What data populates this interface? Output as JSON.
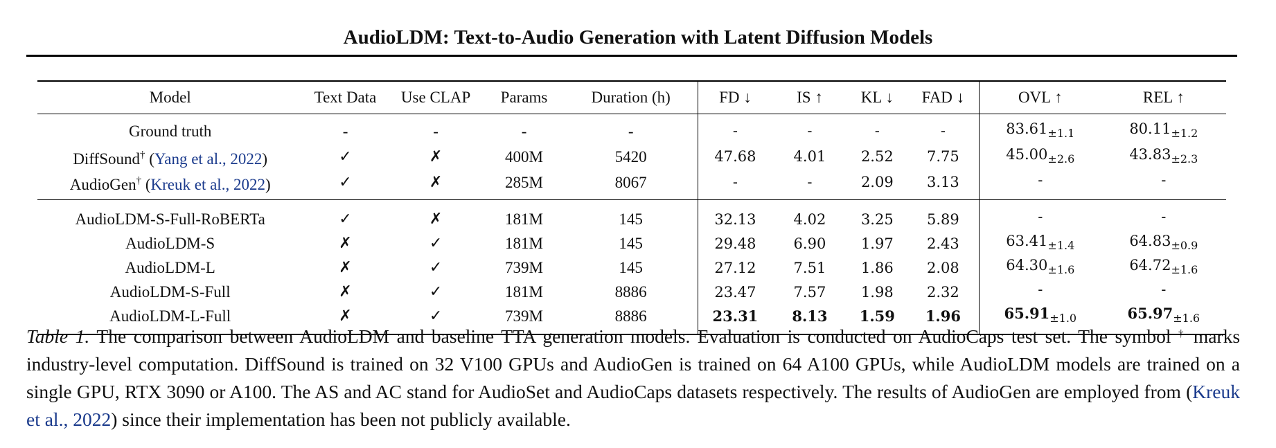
{
  "paper": {
    "running_title": "AudioLDM: Text-to-Audio Generation with Latent Diffusion Models"
  },
  "table": {
    "headers": {
      "model": "Model",
      "text_data": "Text Data",
      "use_clap": "Use CLAP",
      "params": "Params",
      "duration": "Duration (h)",
      "fd": "FD ↓",
      "is": "IS ↑",
      "kl": "KL ↓",
      "fad": "FAD ↓",
      "ovl": "OVL ↑",
      "rel": "REL ↑"
    },
    "baselines": [
      {
        "model": "Ground truth",
        "text_data": "-",
        "use_clap": "-",
        "params": "-",
        "duration": "-",
        "fd": "-",
        "is": "-",
        "kl": "-",
        "fad": "-",
        "ovl": "83.61",
        "ovl_pm": "±1.1",
        "rel": "80.11",
        "rel_pm": "±1.2"
      },
      {
        "model": "DiffSound",
        "dagger": "†",
        "cite": "Yang et al., 2022",
        "text_data": "✓",
        "use_clap": "✗",
        "params": "400M",
        "duration": "5420",
        "fd": "47.68",
        "is": "4.01",
        "kl": "2.52",
        "fad": "7.75",
        "ovl": "45.00",
        "ovl_pm": "±2.6",
        "rel": "43.83",
        "rel_pm": "±2.3"
      },
      {
        "model": "AudioGen",
        "dagger": "†",
        "cite": "Kreuk et al., 2022",
        "text_data": "✓",
        "use_clap": "✗",
        "params": "285M",
        "duration": "8067",
        "fd": "-",
        "is": "-",
        "kl": "2.09",
        "fad": "3.13",
        "ovl": "-",
        "ovl_pm": "",
        "rel": "-",
        "rel_pm": ""
      }
    ],
    "ours": [
      {
        "model": "AudioLDM-S-Full-RoBERTa",
        "text_data": "✓",
        "use_clap": "✗",
        "params": "181M",
        "duration": "145",
        "fd": "32.13",
        "is": "4.02",
        "kl": "3.25",
        "fad": "5.89",
        "ovl": "-",
        "ovl_pm": "",
        "rel": "-",
        "rel_pm": ""
      },
      {
        "model": "AudioLDM-S",
        "text_data": "✗",
        "use_clap": "✓",
        "params": "181M",
        "duration": "145",
        "fd": "29.48",
        "is": "6.90",
        "kl": "1.97",
        "fad": "2.43",
        "ovl": "63.41",
        "ovl_pm": "±1.4",
        "rel": "64.83",
        "rel_pm": "±0.9"
      },
      {
        "model": "AudioLDM-L",
        "text_data": "✗",
        "use_clap": "✓",
        "params": "739M",
        "duration": "145",
        "fd": "27.12",
        "is": "7.51",
        "kl": "1.86",
        "fad": "2.08",
        "ovl": "64.30",
        "ovl_pm": "±1.6",
        "rel": "64.72",
        "rel_pm": "±1.6"
      },
      {
        "model": "AudioLDM-S-Full",
        "text_data": "✗",
        "use_clap": "✓",
        "params": "181M",
        "duration": "8886",
        "fd": "23.47",
        "is": "7.57",
        "kl": "1.98",
        "fad": "2.32",
        "ovl": "-",
        "ovl_pm": "",
        "rel": "-",
        "rel_pm": ""
      },
      {
        "model": "AudioLDM-L-Full",
        "text_data": "✗",
        "use_clap": "✓",
        "params": "739M",
        "duration": "8886",
        "fd": "23.31",
        "is": "8.13",
        "kl": "1.59",
        "fad": "1.96",
        "ovl": "65.91",
        "ovl_pm": "±1.0",
        "rel": "65.97",
        "rel_pm": "±1.6"
      }
    ]
  },
  "caption": {
    "label": "Table 1.",
    "part1": "The comparison between AudioLDM and baseline TTA generation models. Evaluation is conducted on AudioCaps test set. The symbol",
    "dagger": "†",
    "part2": "marks industry-level computation. DiffSound is trained on 32 V100 GPUs and AudioGen is trained on 64 A100 GPUs, while AudioLDM models are trained on a single GPU, RTX 3090 or A100. The AS and AC stand for AudioSet and AudioCaps datasets respectively. The results of AudioGen are employed from",
    "cite_open": "(",
    "cite_name": "Kreuk et al.,",
    "cite_year": "2022",
    "cite_close": ")",
    "part3": "since their implementation has been not publicly available."
  }
}
